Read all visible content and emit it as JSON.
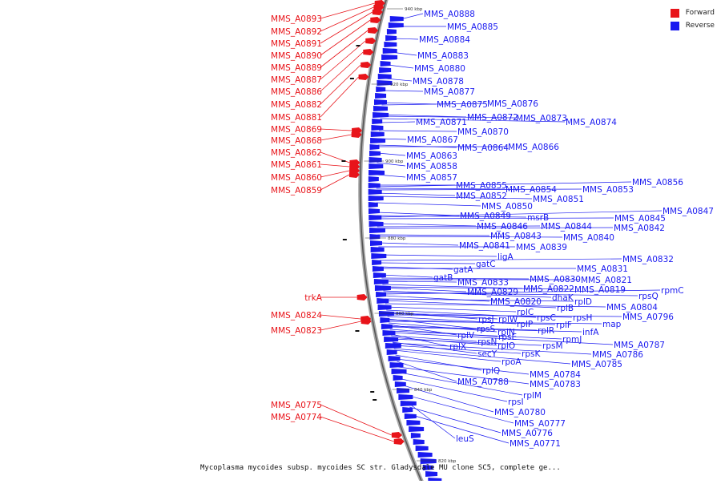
{
  "legend": {
    "forward_label": "Forward",
    "reverse_label": "Reverse",
    "forward_color": "#e8141a",
    "reverse_color": "#1a1af0"
  },
  "caption": "Mycoplasma mycoides subsp. mycoides SC str. Gladysdale MU clone SC5, complete ge...",
  "ticks": [
    "940 kbp",
    "920 kbp",
    "900 kbp",
    "880 kbp",
    "860 kbp",
    "840 kbp",
    "820 kbp"
  ],
  "forward_genes": [
    "MMS_A0893",
    "MMS_A0892",
    "MMS_A0891",
    "MMS_A0890",
    "MMS_A0889",
    "MMS_A0887",
    "MMS_A0886",
    "MMS_A0882",
    "MMS_A0881",
    "MMS_A0869",
    "MMS_A0868",
    "MMS_A0862",
    "MMS_A0861",
    "MMS_A0860",
    "MMS_A0859",
    "trkA",
    "MMS_A0824",
    "MMS_A0823",
    "MMS_A0775",
    "MMS_A0774"
  ],
  "reverse_genes": [
    "MMS_A0888",
    "MMS_A0885",
    "MMS_A0884",
    "MMS_A0883",
    "MMS_A0880",
    "MMS_A0878",
    "MMS_A0877",
    "MMS_A0875",
    "MMS_A0876",
    "MMS_A0872",
    "MMS_A0873",
    "MMS_A0874",
    "MMS_A0871",
    "MMS_A0870",
    "MMS_A0867",
    "MMS_A0864",
    "MMS_A0866",
    "MMS_A0863",
    "MMS_A0858",
    "MMS_A0857",
    "MMS_A0855",
    "MMS_A0854",
    "MMS_A0853",
    "MMS_A0856",
    "MMS_A0852",
    "MMS_A0851",
    "MMS_A0850",
    "MMS_A0849",
    "msrB",
    "MMS_A0845",
    "MMS_A0847",
    "MMS_A0846",
    "MMS_A0844",
    "MMS_A0842",
    "MMS_A0843",
    "MMS_A0840",
    "MMS_A0841",
    "MMS_A0839",
    "ligA",
    "gatC",
    "gatA",
    "MMS_A0832",
    "MMS_A0831",
    "gatB",
    "MMS_A0830",
    "MMS_A0821",
    "MMS_A0833",
    "MMS_A0822",
    "MMS_A0819",
    "MMS_A0829",
    "rpsQ",
    "rpmC",
    "dhaK",
    "MMS_A0820",
    "rplD",
    "rplB",
    "MMS_A0804",
    "rplC",
    "rpsC",
    "rpsH",
    "MMS_A0796",
    "rpsJ",
    "rplW",
    "rplP",
    "rplF",
    "map",
    "rpsS",
    "rplN",
    "rplR",
    "infA",
    "rplV",
    "rpsE",
    "rpmJ",
    "MMS_A0787",
    "rplX",
    "rpsN",
    "rplO",
    "rpsM",
    "MMS_A0786",
    "secY",
    "rpsK",
    "MMS_A0785",
    "rpoA",
    "rplQ",
    "MMS_A0784",
    "MMS_A0788",
    "MMS_A0783",
    "rplM",
    "rpsI",
    "MMS_A0780",
    "MMS_A0777",
    "leuS",
    "MMS_A0776",
    "MMS_A0771"
  ]
}
